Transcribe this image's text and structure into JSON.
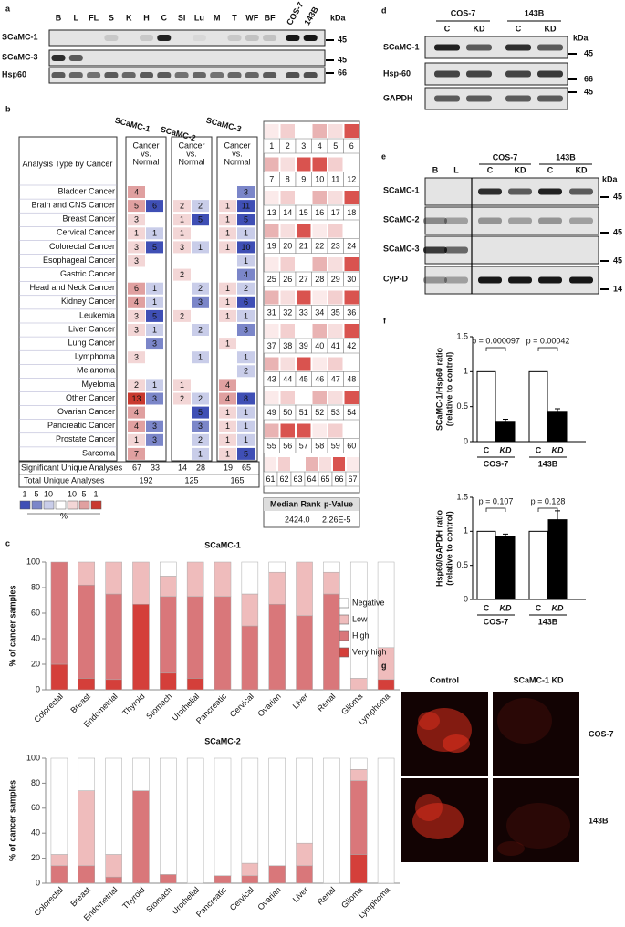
{
  "panel_a": {
    "label": "a",
    "lanes": [
      "B",
      "L",
      "FL",
      "S",
      "K",
      "H",
      "C",
      "SI",
      "Lu",
      "M",
      "T",
      "WF",
      "BF",
      "COS-7",
      "143B"
    ],
    "rows": [
      "SCaMC-1",
      "SCaMC-3",
      "Hsp60"
    ],
    "kda_unit": "kDa",
    "markers": [
      45,
      45,
      66
    ]
  },
  "panel_b": {
    "label": "b",
    "genes": [
      "SCaMC-1",
      "SCaMC-2",
      "SCaMC-3"
    ],
    "column_header": "Analysis Type by Cancer",
    "comparison": [
      "Cancer",
      "vs.",
      "Normal"
    ],
    "rows": [
      {
        "name": "Bladder Cancer",
        "values": [
          4,
          null,
          null,
          null,
          null,
          3
        ]
      },
      {
        "name": "Brain and CNS Cancer",
        "values": [
          5,
          6,
          2,
          2,
          1,
          11
        ]
      },
      {
        "name": "Breast Cancer",
        "values": [
          3,
          null,
          1,
          5,
          1,
          5
        ]
      },
      {
        "name": "Cervical Cancer",
        "values": [
          1,
          1,
          1,
          null,
          1,
          1
        ]
      },
      {
        "name": "Colorectal Cancer",
        "values": [
          3,
          5,
          3,
          1,
          1,
          10
        ]
      },
      {
        "name": "Esophageal Cancer",
        "values": [
          3,
          null,
          null,
          null,
          null,
          1
        ]
      },
      {
        "name": "Gastric Cancer",
        "values": [
          null,
          null,
          2,
          null,
          null,
          4
        ]
      },
      {
        "name": "Head and Neck Cancer",
        "values": [
          6,
          1,
          null,
          2,
          1,
          2
        ]
      },
      {
        "name": "Kidney Cancer",
        "values": [
          4,
          1,
          null,
          3,
          1,
          6
        ]
      },
      {
        "name": "Leukemia",
        "values": [
          3,
          5,
          2,
          null,
          1,
          1
        ]
      },
      {
        "name": "Liver Cancer",
        "values": [
          3,
          1,
          null,
          2,
          null,
          3
        ]
      },
      {
        "name": "Lung Cancer",
        "values": [
          null,
          3,
          null,
          null,
          1,
          null
        ]
      },
      {
        "name": "Lymphoma",
        "values": [
          3,
          null,
          null,
          1,
          null,
          1
        ]
      },
      {
        "name": "Melanoma",
        "values": [
          null,
          null,
          null,
          null,
          null,
          2
        ]
      },
      {
        "name": "Myeloma",
        "values": [
          2,
          1,
          1,
          null,
          4,
          null
        ]
      },
      {
        "name": "Other Cancer",
        "values": [
          13,
          3,
          2,
          2,
          4,
          8
        ]
      },
      {
        "name": "Ovarian Cancer",
        "values": [
          4,
          null,
          null,
          5,
          1,
          1
        ]
      },
      {
        "name": "Pancreatic Cancer",
        "values": [
          4,
          3,
          null,
          3,
          1,
          1
        ]
      },
      {
        "name": "Prostate Cancer",
        "values": [
          1,
          3,
          null,
          2,
          1,
          1
        ]
      },
      {
        "name": "Sarcoma",
        "values": [
          7,
          null,
          null,
          1,
          1,
          5
        ]
      }
    ],
    "significant_label": "Significant Unique Analyses",
    "significant": [
      67,
      33,
      14,
      28,
      19,
      65
    ],
    "total_label": "Total Unique Analyses",
    "total": [
      192,
      125,
      165
    ],
    "legend_blue": [
      1,
      5,
      10
    ],
    "legend_red": [
      10,
      5,
      1
    ],
    "legend_unit": "%",
    "rank_grid": [
      1,
      2,
      3,
      4,
      5,
      6,
      7,
      8,
      9,
      10,
      11,
      12,
      13,
      14,
      15,
      16,
      17,
      18,
      19,
      20,
      21,
      22,
      23,
      24,
      25,
      26,
      27,
      28,
      29,
      30,
      31,
      32,
      33,
      34,
      35,
      36,
      37,
      38,
      39,
      40,
      41,
      42,
      43,
      44,
      45,
      46,
      47,
      48,
      49,
      50,
      51,
      52,
      53,
      54,
      55,
      56,
      57,
      58,
      59,
      60,
      61,
      62,
      63,
      64,
      65,
      66,
      67
    ],
    "median_rank_label": "Median Rank",
    "median_rank": "2424.0",
    "p_value_label": "p-Value",
    "p_value": "2.26E-5"
  },
  "panel_c": {
    "label": "c"
  },
  "chart_data": [
    {
      "type": "stacked_bar",
      "title": "SCaMC-1",
      "ylabel": "% of cancer samples",
      "legend": "right",
      "categories": [
        "Colorectal",
        "Breast",
        "Endometrial",
        "Thyroid",
        "Stomach",
        "Urothelial",
        "Pancreatic",
        "Cervical",
        "Ovarian",
        "Liver",
        "Renal",
        "Glioma",
        "Lymphoma"
      ],
      "series": [
        {
          "name": "Very high",
          "color": "#d43f3a",
          "values": [
            20,
            9,
            8,
            67,
            13,
            9,
            0,
            0,
            0,
            0,
            0,
            0,
            8
          ]
        },
        {
          "name": "High",
          "color": "#d9777a",
          "values": [
            80,
            73,
            67,
            0,
            60,
            64,
            73,
            50,
            67,
            58,
            75,
            0,
            0
          ]
        },
        {
          "name": "Low",
          "color": "#efbcbc",
          "values": [
            0,
            18,
            25,
            33,
            16,
            27,
            27,
            25,
            25,
            42,
            17,
            9,
            25
          ]
        },
        {
          "name": "Negative",
          "color": "#ffffff",
          "values": [
            0,
            0,
            0,
            0,
            11,
            0,
            0,
            25,
            8,
            0,
            8,
            91,
            67
          ]
        }
      ],
      "ylim": [
        0,
        100
      ],
      "yticks": [
        0,
        20,
        40,
        60,
        80,
        100
      ]
    },
    {
      "type": "stacked_bar",
      "title": "SCaMC-2",
      "ylabel": "% of cancer samples",
      "categories": [
        "Colorectal",
        "Breast",
        "Endometrial",
        "Thyroid",
        "Stomach",
        "Urothelial",
        "Pancreatic",
        "Cervical",
        "Ovarian",
        "Liver",
        "Renal",
        "Glioma",
        "Lymphoma"
      ],
      "series": [
        {
          "name": "Very high",
          "color": "#d43f3a",
          "values": [
            0,
            0,
            0,
            0,
            0,
            0,
            0,
            0,
            0,
            0,
            0,
            23,
            0
          ]
        },
        {
          "name": "High",
          "color": "#d9777a",
          "values": [
            14,
            14,
            5,
            74,
            7,
            0,
            6,
            6,
            14,
            14,
            0,
            59,
            0
          ]
        },
        {
          "name": "Low",
          "color": "#efbcbc",
          "values": [
            9,
            60,
            18,
            0,
            0,
            0,
            0,
            10,
            0,
            18,
            0,
            9,
            0
          ]
        },
        {
          "name": "Negative",
          "color": "#ffffff",
          "values": [
            77,
            26,
            77,
            26,
            93,
            100,
            94,
            84,
            86,
            68,
            100,
            9,
            100
          ]
        }
      ],
      "ylim": [
        0,
        100
      ],
      "yticks": [
        0,
        20,
        40,
        60,
        80,
        100
      ]
    },
    {
      "type": "bar",
      "ylabel": [
        "SCaMC-1/Hsp60 ratio",
        "(relative to control)"
      ],
      "categories": [
        "C",
        "KD",
        "C",
        "KD"
      ],
      "groups": [
        "COS-7",
        "143B"
      ],
      "values": [
        1,
        0.29,
        1,
        0.42
      ],
      "errors": [
        null,
        0.03,
        null,
        0.05
      ],
      "colors": [
        "#ffffff",
        "#000000",
        "#ffffff",
        "#000000"
      ],
      "annotations": [
        "p = 0.000097",
        "p = 0.00042"
      ],
      "ylim": [
        0,
        1.5
      ],
      "yticks": [
        0,
        0.5,
        1,
        1.5
      ]
    },
    {
      "type": "bar",
      "ylabel": [
        "Hsp60/GAPDH ratio",
        "(relative to control)"
      ],
      "categories": [
        "C",
        "KD",
        "C",
        "KD"
      ],
      "groups": [
        "COS-7",
        "143B"
      ],
      "values": [
        1,
        0.93,
        1,
        1.17
      ],
      "errors": [
        null,
        0.03,
        null,
        0.13
      ],
      "colors": [
        "#ffffff",
        "#000000",
        "#ffffff",
        "#000000"
      ],
      "annotations": [
        "p = 0.107",
        "p = 0.128"
      ],
      "ylim": [
        0,
        1.5
      ],
      "yticks": [
        0,
        0.5,
        1,
        1.5
      ]
    }
  ],
  "panel_d": {
    "label": "d",
    "groups": [
      "COS-7",
      "143B"
    ],
    "lanes": [
      "C",
      "KD",
      "C",
      "KD"
    ],
    "rows": [
      "SCaMC-1",
      "Hsp-60",
      "GAPDH"
    ],
    "kda_unit": "kDa",
    "markers": [
      45,
      66,
      45
    ]
  },
  "panel_e": {
    "label": "e",
    "lanes": [
      "B",
      "L",
      "C",
      "KD",
      "C",
      "KD"
    ],
    "groups": [
      "COS-7",
      "143B"
    ],
    "rows": [
      "SCaMC-1",
      "SCaMC-2",
      "SCaMC-3",
      "CyP-D"
    ],
    "kda_unit": "kDa",
    "markers": [
      45,
      45,
      45,
      14
    ]
  },
  "panel_f": {
    "label": "f"
  },
  "panel_g": {
    "label": "g",
    "columns": [
      "Control",
      "SCaMC-1 KD"
    ],
    "rows": [
      "COS-7",
      "143B"
    ]
  }
}
